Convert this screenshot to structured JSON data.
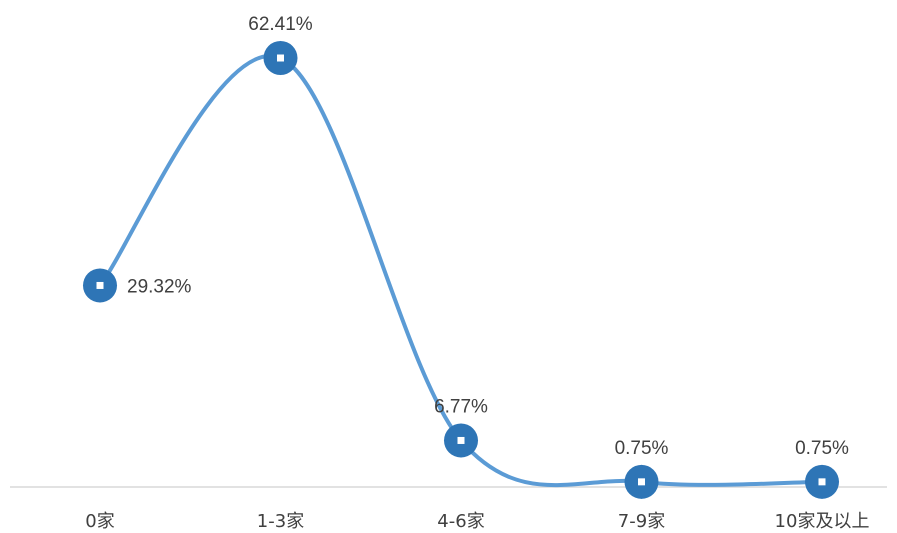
{
  "chart_data": {
    "type": "line",
    "smooth": true,
    "categories": [
      "0家",
      "1-3家",
      "4-6家",
      "7-9家",
      "10家及以上"
    ],
    "series": [
      {
        "values": [
          29.32,
          62.41,
          6.77,
          0.75,
          0.75
        ],
        "labels": [
          "29.32%",
          "62.41%",
          "6.77%",
          "0.75%",
          "0.75%"
        ],
        "color": "#5b9bd5",
        "marker_color": "#2e75b6"
      }
    ],
    "ylim": [
      0,
      62.41
    ],
    "grid": false,
    "legend": "none",
    "axis_color": "#d9d9d9"
  }
}
